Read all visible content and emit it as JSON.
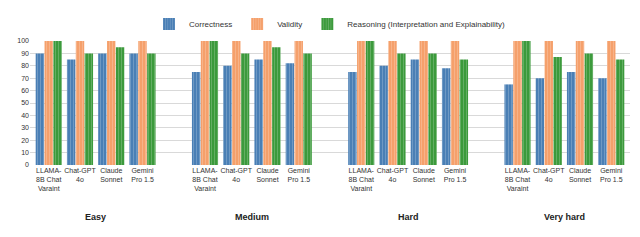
{
  "chart_data": {
    "type": "bar",
    "groups": [
      "Easy",
      "Medium",
      "Hard",
      "Very hard"
    ],
    "categories": [
      "LLAMA- 8B Chat Varaint",
      "Chat-GPT 4o",
      "Claude Sonnet",
      "Gemini Pro 1.5"
    ],
    "series": [
      {
        "name": "Correctness",
        "color": "#4a7fb5",
        "values": [
          [
            90,
            85,
            90,
            90
          ],
          [
            75,
            80,
            85,
            82
          ],
          [
            75,
            80,
            85,
            78
          ],
          [
            65,
            70,
            75,
            70
          ]
        ]
      },
      {
        "name": "Validity",
        "color": "#f5a06b",
        "values": [
          [
            100,
            100,
            100,
            100
          ],
          [
            100,
            100,
            100,
            100
          ],
          [
            100,
            100,
            100,
            100
          ],
          [
            100,
            100,
            100,
            100
          ]
        ]
      },
      {
        "name": "Reasoning (Interpretation and Explainability)",
        "color": "#3c9a3c",
        "values": [
          [
            100,
            90,
            95,
            90
          ],
          [
            100,
            90,
            95,
            90
          ],
          [
            100,
            90,
            90,
            85
          ],
          [
            100,
            87,
            90,
            85
          ]
        ]
      }
    ],
    "ylim": [
      0,
      100
    ],
    "yticks": [
      0,
      10,
      20,
      30,
      40,
      50,
      60,
      70,
      80,
      90,
      100
    ],
    "grid": true,
    "legend": "top"
  }
}
